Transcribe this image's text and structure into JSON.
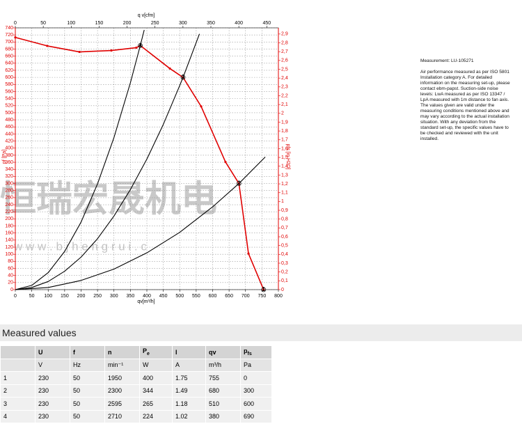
{
  "chart_data": {
    "type": "line",
    "x_label": "qv[m³/h]",
    "x2_label": "q v[cfm]",
    "y_label": "pf [Pa]",
    "y2_label": "pfs [in H2O]",
    "xlim": [
      0,
      800
    ],
    "xticks": [
      0,
      50,
      100,
      150,
      200,
      250,
      300,
      350,
      400,
      450,
      500,
      550,
      600,
      650,
      700,
      750,
      800
    ],
    "x2lim": [
      0,
      470.8
    ],
    "x2ticks": [
      0,
      50,
      100,
      150,
      200,
      250,
      300,
      350,
      400,
      450
    ],
    "ylim": [
      0,
      740
    ],
    "yticks": [
      0,
      20,
      40,
      60,
      80,
      100,
      120,
      140,
      160,
      180,
      200,
      220,
      240,
      260,
      280,
      300,
      320,
      340,
      360,
      380,
      400,
      420,
      440,
      460,
      480,
      500,
      520,
      540,
      560,
      580,
      600,
      620,
      640,
      660,
      680,
      700,
      720,
      740
    ],
    "y2lim": [
      0,
      2.97
    ],
    "y2ticks": [
      0,
      {
        "value": 0.1,
        "label": "0,1"
      },
      {
        "value": 0.2,
        "label": "0,2"
      },
      {
        "value": 0.3,
        "label": "0,3"
      },
      {
        "value": 0.4,
        "label": "0,4"
      },
      {
        "value": 0.5,
        "label": "0,5"
      },
      {
        "value": 0.6,
        "label": "0,6"
      },
      {
        "value": 0.7,
        "label": "0,7"
      },
      {
        "value": 0.8,
        "label": "0,8"
      },
      {
        "value": 0.9,
        "label": "0,9"
      },
      1,
      {
        "value": 1.1,
        "label": "1,1"
      },
      {
        "value": 1.2,
        "label": "1,2"
      },
      {
        "value": 1.3,
        "label": "1,3"
      },
      {
        "value": 1.4,
        "label": "1,4"
      },
      {
        "value": 1.5,
        "label": "1,5"
      },
      {
        "value": 1.6,
        "label": "1,6"
      },
      {
        "value": 1.7,
        "label": "1,7"
      },
      {
        "value": 1.8,
        "label": "1,8"
      },
      {
        "value": 1.9,
        "label": "1,9"
      },
      2,
      {
        "value": 2.1,
        "label": "2,1"
      },
      {
        "value": 2.2,
        "label": "2,2"
      },
      {
        "value": 2.3,
        "label": "2,3"
      },
      {
        "value": 2.4,
        "label": "2,4"
      },
      {
        "value": 2.5,
        "label": "2,5"
      },
      {
        "value": 2.6,
        "label": "2,6"
      },
      {
        "value": 2.7,
        "label": "2,7"
      },
      {
        "value": 2.8,
        "label": "2,8"
      },
      {
        "value": 2.9,
        "label": "2,9"
      }
    ],
    "grid": true,
    "series": [
      {
        "color": "#e00000",
        "markers": true,
        "x": [
          0,
          97,
          195,
          292,
          368,
          380,
          470,
          510,
          565,
          639,
          680,
          709,
          755
        ],
        "values": [
          713,
          689,
          672,
          676,
          684,
          690,
          625,
          600,
          518,
          361,
          300,
          102,
          0
        ]
      },
      {
        "color": "#000000",
        "markers": false,
        "x": [
          0,
          50,
          100,
          150,
          200,
          250,
          300,
          350,
          380,
          392
        ],
        "values": [
          0,
          12,
          48,
          108,
          191,
          299,
          430,
          585,
          690,
          734
        ]
      },
      {
        "color": "#000000",
        "markers": false,
        "x": [
          0,
          50,
          100,
          150,
          200,
          250,
          300,
          350,
          400,
          450,
          500,
          510,
          560
        ],
        "values": [
          0,
          6,
          23,
          52,
          92,
          144,
          208,
          283,
          369,
          467,
          577,
          600,
          723
        ]
      },
      {
        "color": "#000000",
        "markers": false,
        "x": [
          0,
          100,
          200,
          300,
          400,
          500,
          600,
          680,
          760
        ],
        "values": [
          0,
          6,
          26,
          58,
          104,
          162,
          234,
          300,
          375
        ]
      }
    ],
    "point_labels": [
      {
        "label": "1",
        "x": 755,
        "y": 0
      },
      {
        "label": "2",
        "x": 680,
        "y": 300
      },
      {
        "label": "3",
        "x": 510,
        "y": 600
      },
      {
        "label": "4",
        "x": 380,
        "y": 690
      }
    ],
    "watermark": "恒瑞宏晟机电",
    "watermark_url": "w w w . b j h e n g r u i . c"
  },
  "notes": {
    "title": "Measurement: LU-105271",
    "lines": [
      "Air performance measured as per ISO 5801",
      "Installation category A. For detailed",
      "information on the measuring set-up, please",
      "contact ebm-papst. Suction-side noise",
      "levels: LwA measured as per ISO 13347 /",
      "LpA measured with 1m distance to fan axis.",
      "The values given are valid under the",
      "measuring conditions mentioned above and",
      "may vary according to the actual installation",
      "situation. With any deviation from the",
      "standard set-up, the specific values have to",
      "be checked and reviewed with the unit",
      "installed."
    ]
  },
  "table": {
    "title": "Measured values",
    "header": [
      "U",
      "f",
      "n",
      {
        "main": "P",
        "sub": "e"
      },
      "I",
      "qv",
      {
        "main": "p",
        "sub": "fs"
      }
    ],
    "units": [
      "V",
      "Hz",
      "min⁻¹",
      "W",
      "A",
      "m³/h",
      "Pa"
    ],
    "rows": [
      [
        1,
        230,
        50,
        1950,
        400,
        1.75,
        755,
        0
      ],
      [
        2,
        230,
        50,
        2300,
        344,
        1.49,
        680,
        300
      ],
      [
        3,
        230,
        50,
        2595,
        265,
        1.18,
        510,
        600
      ],
      [
        4,
        230,
        50,
        2710,
        224,
        1.02,
        380,
        690
      ]
    ]
  }
}
